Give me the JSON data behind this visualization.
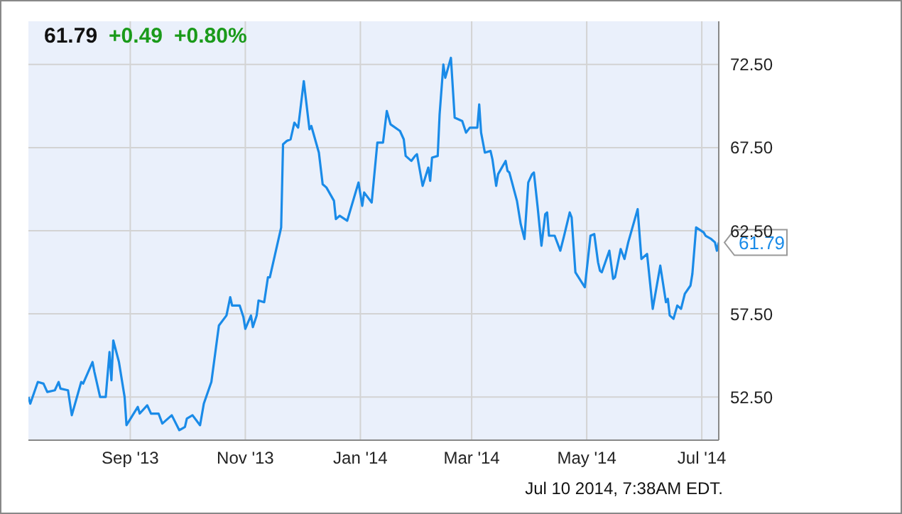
{
  "chart_data": {
    "type": "line",
    "title": "61.79 +0.49 +0.80%",
    "x": [
      "2013-07-09",
      "2013-07-10",
      "2013-07-14",
      "2013-07-17",
      "2013-07-19",
      "2013-07-23",
      "2013-07-25",
      "2013-07-26",
      "2013-07-30",
      "2013-08-01",
      "2013-08-06",
      "2013-08-07",
      "2013-08-12",
      "2013-08-13",
      "2013-08-16",
      "2013-08-19",
      "2013-08-21",
      "2013-08-22",
      "2013-08-23",
      "2013-08-26",
      "2013-08-29",
      "2013-08-30",
      "2013-09-05",
      "2013-09-06",
      "2013-09-10",
      "2013-09-12",
      "2013-09-16",
      "2013-09-18",
      "2013-09-23",
      "2013-09-27",
      "2013-09-30",
      "2013-10-01",
      "2013-10-04",
      "2013-10-08",
      "2013-10-10",
      "2013-10-14",
      "2013-10-18",
      "2013-10-22",
      "2013-10-24",
      "2013-10-25",
      "2013-10-29",
      "2013-10-31",
      "2013-11-01",
      "2013-11-04",
      "2013-11-05",
      "2013-11-07",
      "2013-11-08",
      "2013-11-11",
      "2013-11-13",
      "2013-11-14",
      "2013-11-19",
      "2013-11-20",
      "2013-11-21",
      "2013-11-23",
      "2013-11-25",
      "2013-11-27",
      "2013-11-29",
      "2013-12-02",
      "2013-12-05",
      "2013-12-06",
      "2013-12-10",
      "2013-12-12",
      "2013-12-14",
      "2013-12-18",
      "2013-12-19",
      "2013-12-21",
      "2013-12-25",
      "2013-12-31",
      "2014-01-02",
      "2014-01-03",
      "2014-01-07",
      "2014-01-10",
      "2014-01-13",
      "2014-01-15",
      "2014-01-17",
      "2014-01-22",
      "2014-01-24",
      "2014-01-25",
      "2014-01-28",
      "2014-01-30",
      "2014-01-31",
      "2014-02-03",
      "2014-02-06",
      "2014-02-07",
      "2014-02-08",
      "2014-02-11",
      "2014-02-12",
      "2014-02-14",
      "2014-02-15",
      "2014-02-18",
      "2014-02-20",
      "2014-02-24",
      "2014-02-26",
      "2014-02-28",
      "2014-03-04",
      "2014-03-05",
      "2014-03-06",
      "2014-03-08",
      "2014-03-11",
      "2014-03-12",
      "2014-03-14",
      "2014-03-15",
      "2014-03-19",
      "2014-03-20",
      "2014-03-21",
      "2014-03-25",
      "2014-03-27",
      "2014-03-29",
      "2014-03-31",
      "2014-04-02",
      "2014-04-03",
      "2014-04-05",
      "2014-04-07",
      "2014-04-09",
      "2014-04-10",
      "2014-04-11",
      "2014-04-14",
      "2014-04-17",
      "2014-04-19",
      "2014-04-22",
      "2014-04-23",
      "2014-04-25",
      "2014-04-30",
      "2014-05-03",
      "2014-05-05",
      "2014-05-07",
      "2014-05-08",
      "2014-05-09",
      "2014-05-13",
      "2014-05-15",
      "2014-05-16",
      "2014-05-19",
      "2014-05-21",
      "2014-05-23",
      "2014-05-28",
      "2014-05-30",
      "2014-06-02",
      "2014-06-05",
      "2014-06-09",
      "2014-06-12",
      "2014-06-13",
      "2014-06-14",
      "2014-06-16",
      "2014-06-18",
      "2014-06-20",
      "2014-06-22",
      "2014-06-25",
      "2014-06-26",
      "2014-06-28",
      "2014-07-02",
      "2014-07-03",
      "2014-07-06",
      "2014-07-08",
      "2014-07-09",
      "2014-07-10"
    ],
    "series": [
      {
        "color": "#1a8be8",
        "values": [
          52.5,
          52.1,
          53.4,
          53.3,
          52.8,
          52.9,
          53.4,
          53.0,
          52.9,
          51.4,
          53.4,
          53.3,
          54.6,
          54.0,
          52.5,
          52.5,
          55.2,
          53.5,
          55.9,
          54.6,
          52.5,
          50.8,
          51.9,
          51.5,
          52.0,
          51.5,
          51.5,
          50.9,
          51.4,
          50.5,
          50.7,
          51.2,
          51.4,
          50.8,
          52.1,
          53.4,
          56.8,
          57.4,
          58.5,
          58.0,
          58.0,
          57.3,
          56.6,
          57.4,
          56.7,
          57.4,
          58.3,
          58.2,
          59.7,
          59.7,
          62.2,
          62.7,
          67.7,
          67.9,
          68.0,
          69.0,
          68.7,
          71.5,
          68.6,
          68.8,
          67.2,
          65.3,
          65.1,
          64.3,
          63.2,
          63.4,
          63.1,
          65.4,
          64.0,
          64.8,
          64.2,
          67.8,
          67.8,
          69.7,
          68.9,
          68.5,
          68.0,
          67.0,
          66.7,
          67.0,
          67.1,
          65.2,
          66.3,
          65.5,
          66.9,
          67.0,
          69.5,
          72.5,
          71.7,
          72.9,
          69.3,
          69.1,
          68.4,
          68.7,
          68.7,
          70.1,
          68.4,
          67.2,
          67.3,
          66.8,
          65.2,
          65.9,
          66.7,
          66.1,
          66.0,
          64.3,
          62.9,
          62.0,
          65.4,
          65.9,
          66.0,
          63.9,
          61.6,
          63.5,
          63.6,
          62.2,
          62.2,
          61.3,
          62.2,
          63.6,
          63.3,
          60.0,
          59.1,
          62.2,
          62.3,
          60.6,
          60.1,
          60.0,
          61.3,
          59.6,
          59.7,
          61.4,
          60.8,
          61.8,
          63.8,
          60.8,
          61.1,
          57.8,
          60.4,
          58.2,
          58.4,
          57.4,
          57.2,
          58.0,
          57.8,
          58.7,
          59.2,
          59.9,
          62.7,
          62.4,
          62.2,
          62.0,
          61.8,
          61.3,
          61.79
        ]
      }
    ],
    "xlim": [
      "2013-07-09",
      "2014-07-10"
    ],
    "xticks": [
      {
        "value": "2013-09-01",
        "label": "Sep '13"
      },
      {
        "value": "2013-11-01",
        "label": "Nov '13"
      },
      {
        "value": "2014-01-01",
        "label": "Jan '14"
      },
      {
        "value": "2014-03-01",
        "label": "Mar '14"
      },
      {
        "value": "2014-05-01",
        "label": "May '14"
      },
      {
        "value": "2014-07-01",
        "label": "Jul '14"
      }
    ],
    "ylim": [
      49.9,
      75.1
    ],
    "yticks": [
      {
        "value": 52.5,
        "label": "52.50"
      },
      {
        "value": 57.5,
        "label": "57.50"
      },
      {
        "value": 62.5,
        "label": "62.50"
      },
      {
        "value": 67.5,
        "label": "67.50"
      },
      {
        "value": 72.5,
        "label": "72.50"
      }
    ],
    "grid": true,
    "marker": "none",
    "line_style": "solid",
    "annotations": [
      {
        "text": "61.79",
        "x": "2014-07-10",
        "y": 61.79
      },
      "Jul 10 2014, 7:38AM EDT."
    ]
  }
}
